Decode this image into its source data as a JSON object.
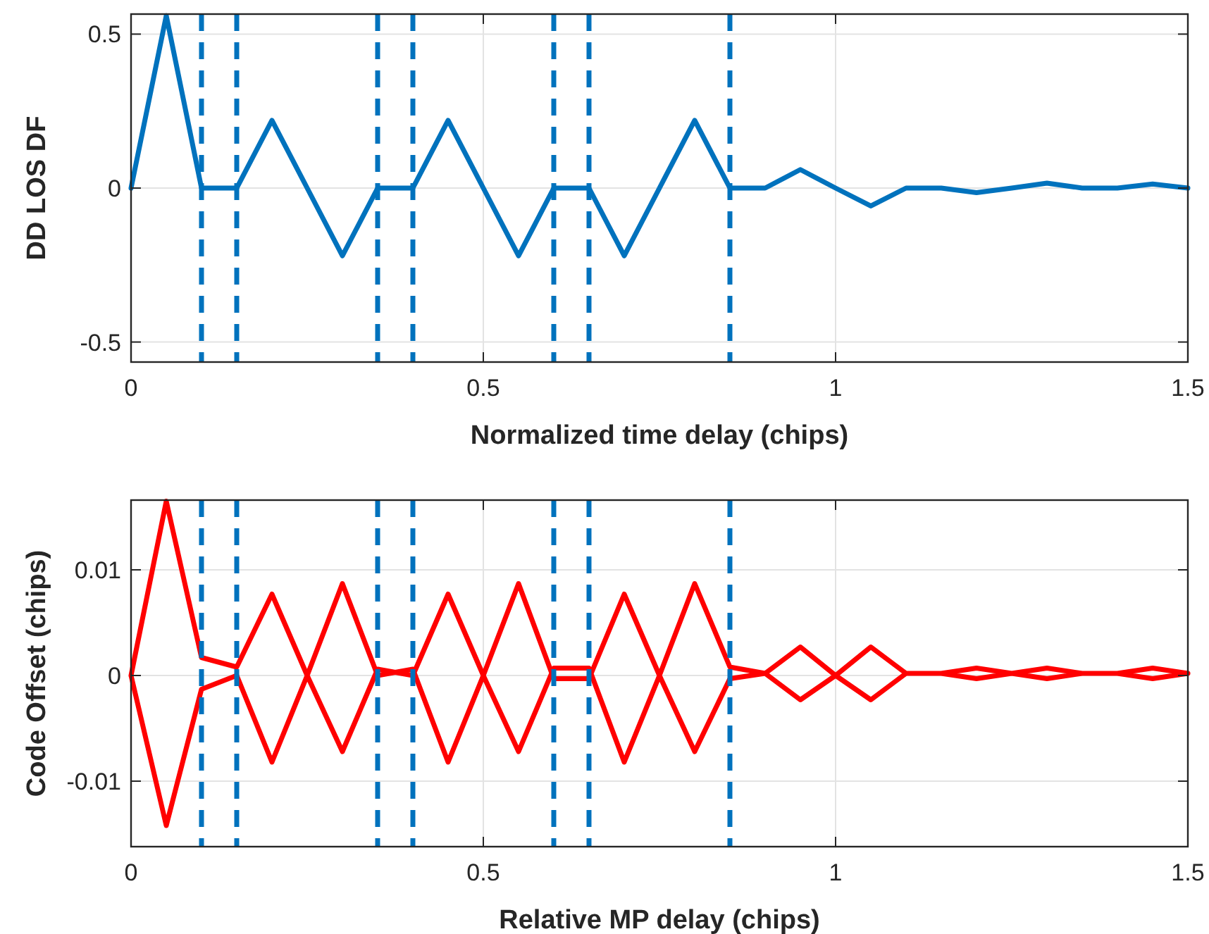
{
  "chart_data": [
    {
      "type": "line",
      "xlabel": "Normalized time delay (chips)",
      "ylabel": "DD LOS DF",
      "x": [
        0,
        0.05,
        0.1,
        0.15,
        0.2,
        0.25,
        0.3,
        0.35,
        0.4,
        0.45,
        0.5,
        0.55,
        0.6,
        0.65,
        0.7,
        0.75,
        0.8,
        0.85,
        0.9,
        0.95,
        1,
        1.05,
        1.1,
        1.15,
        1.2,
        1.25,
        1.3,
        1.35,
        1.4,
        1.45,
        1.5
      ],
      "series": [
        {
          "color": "#0072bd",
          "values": [
            0,
            0.56,
            0,
            0,
            0.22,
            0,
            -0.22,
            0,
            0,
            0.22,
            0,
            -0.22,
            0,
            0,
            -0.22,
            0,
            0.22,
            0,
            0,
            0.06,
            0,
            -0.058,
            0,
            0,
            -0.015,
            0,
            0.016,
            0,
            0,
            0.013,
            0
          ]
        }
      ],
      "xlim": [
        0,
        1.5
      ],
      "xticks": [
        0,
        0.5,
        1,
        1.5
      ],
      "ylim": [
        -0.565,
        0.565
      ],
      "yticks": [
        -0.5,
        0,
        0.5
      ],
      "grid": true,
      "line_style": "solid",
      "marker": "none",
      "ref_lines": [
        {
          "axis": "x",
          "value": 0.1,
          "color": "#0072bd",
          "line_style": "dashed"
        },
        {
          "axis": "x",
          "value": 0.15,
          "color": "#0072bd",
          "line_style": "dashed"
        },
        {
          "axis": "x",
          "value": 0.35,
          "color": "#0072bd",
          "line_style": "dashed"
        },
        {
          "axis": "x",
          "value": 0.4,
          "color": "#0072bd",
          "line_style": "dashed"
        },
        {
          "axis": "x",
          "value": 0.6,
          "color": "#0072bd",
          "line_style": "dashed"
        },
        {
          "axis": "x",
          "value": 0.65,
          "color": "#0072bd",
          "line_style": "dashed"
        },
        {
          "axis": "x",
          "value": 0.85,
          "color": "#0072bd",
          "line_style": "dashed"
        }
      ]
    },
    {
      "type": "line",
      "xlabel": "Relative MP delay (chips)",
      "ylabel": "Code Offset (chips)",
      "series": [
        {
          "color": "#ff0000",
          "x": [
            0,
            0.05,
            0.1,
            0.15,
            0.2,
            0.25,
            0.3,
            0.35,
            0.4,
            0.45,
            0.5,
            0.55,
            0.6,
            0.65,
            0.7,
            0.75,
            0.8,
            0.85,
            0.9,
            0.95,
            1,
            1.05,
            1.1,
            1.15,
            1.2,
            1.25,
            1.3,
            1.35,
            1.4,
            1.45,
            1.5,
            0,
            0.05,
            0.1,
            0.15,
            0.2,
            0.25,
            0.3,
            0.35,
            0.4,
            0.45,
            0.5,
            0.55,
            0.6,
            0.65,
            0.7,
            0.75,
            0.8,
            0.85,
            0.9,
            0.95,
            1,
            1.05,
            1.1,
            1.15,
            1.2,
            1.25,
            1.3,
            1.35,
            1.4,
            1.45,
            1.5
          ],
          "values": [
            0,
            0.0165,
            0.0017,
            0.0008,
            0.0077,
            0,
            -0.0072,
            0.0006,
            0,
            0.0077,
            0,
            -0.0072,
            0.0007,
            0.0007,
            -0.0082,
            0,
            0.0087,
            0.0008,
            0.0002,
            0.0027,
            0,
            -0.0023,
            0.0002,
            0.0002,
            0.0007,
            0.0002,
            -0.0003,
            0.0002,
            0.0002,
            0.0007,
            0.0002,
            0,
            -0.0142,
            -0.0013,
            0,
            -0.0082,
            0,
            0.0087,
            0,
            0.0006,
            -0.0082,
            0,
            0.0087,
            -0.0003,
            -0.0003,
            0.0077,
            0,
            -0.0072,
            -0.0003,
            0.0002,
            -0.0023,
            0,
            0.0027,
            0.0002,
            0.0002,
            -0.0003,
            0.0002,
            0.0007,
            0.0002,
            0.0002,
            -0.0003,
            0.0002
          ]
        }
      ],
      "xlim": [
        0,
        1.5
      ],
      "xticks": [
        0,
        0.5,
        1,
        1.5
      ],
      "ylim": [
        -0.0162,
        0.0166
      ],
      "yticks": [
        -0.01,
        0,
        0.01
      ],
      "grid": true,
      "line_style": "solid",
      "marker": "none",
      "ref_lines": [
        {
          "axis": "x",
          "value": 0.1,
          "color": "#0072bd",
          "line_style": "dashed"
        },
        {
          "axis": "x",
          "value": 0.15,
          "color": "#0072bd",
          "line_style": "dashed"
        },
        {
          "axis": "x",
          "value": 0.35,
          "color": "#0072bd",
          "line_style": "dashed"
        },
        {
          "axis": "x",
          "value": 0.4,
          "color": "#0072bd",
          "line_style": "dashed"
        },
        {
          "axis": "x",
          "value": 0.6,
          "color": "#0072bd",
          "line_style": "dashed"
        },
        {
          "axis": "x",
          "value": 0.65,
          "color": "#0072bd",
          "line_style": "dashed"
        },
        {
          "axis": "x",
          "value": 0.85,
          "color": "#0072bd",
          "line_style": "dashed"
        }
      ]
    }
  ]
}
